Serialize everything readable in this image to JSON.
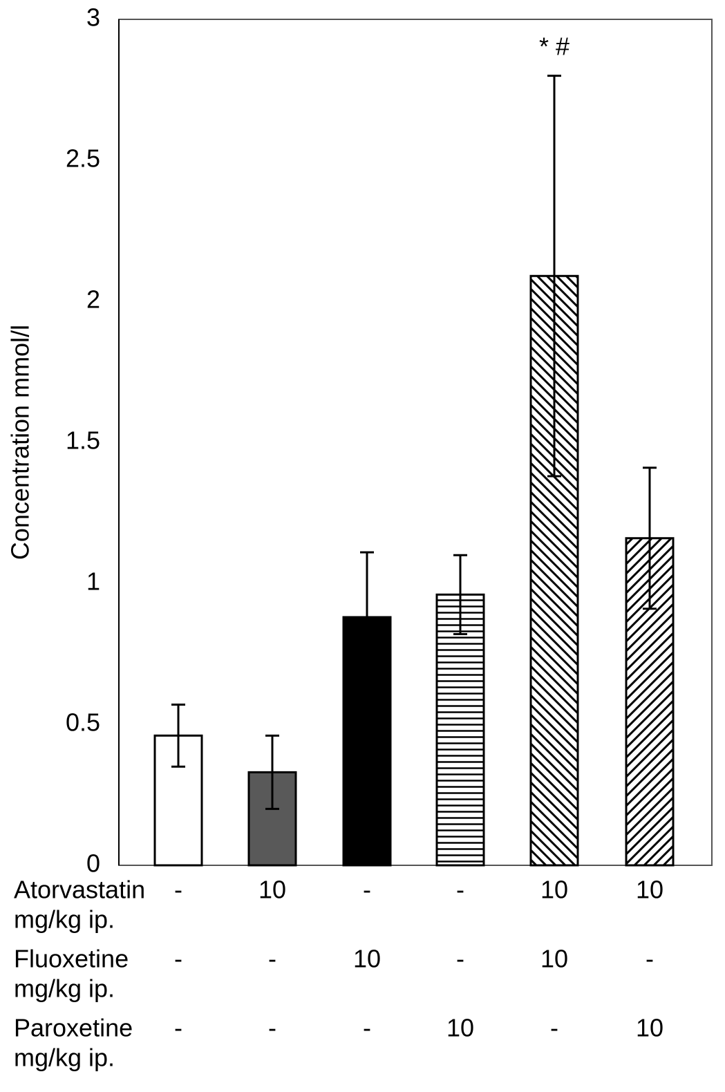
{
  "chart_data": {
    "type": "bar",
    "y_label": "Concentration mmol/l",
    "categories": [
      null,
      null,
      null,
      null,
      null,
      null
    ],
    "values": [
      0.46,
      0.33,
      0.88,
      0.96,
      2.09,
      1.16
    ],
    "errors": [
      0.11,
      0.13,
      0.23,
      0.14,
      0.71,
      0.25
    ],
    "colors": [
      "#ffffff",
      "#595959",
      "#000000",
      "#ffffff",
      "#ffffff",
      "#ffffff"
    ],
    "patterns": [
      "none",
      "none",
      "none",
      "horizontal",
      "backslash",
      "slash"
    ],
    "annotations": [
      {
        "bar": 4,
        "text": "* #"
      }
    ],
    "ylim": [
      0,
      3
    ],
    "yticks": [
      0,
      0.5,
      1,
      1.5,
      2,
      2.5,
      3
    ],
    "grid": false,
    "treatments": [
      {
        "name": "Atorvastatin",
        "unit": "mg/kg ip.",
        "doses": [
          "-",
          "10",
          "-",
          "-",
          "10",
          "10"
        ]
      },
      {
        "name": "Fluoxetine",
        "unit": "mg/kg ip.",
        "doses": [
          "-",
          "-",
          "10",
          "-",
          "10",
          "-"
        ]
      },
      {
        "name": "Paroxetine",
        "unit": "mg/kg ip.",
        "doses": [
          "-",
          "-",
          "-",
          "10",
          "-",
          "10"
        ]
      }
    ]
  }
}
